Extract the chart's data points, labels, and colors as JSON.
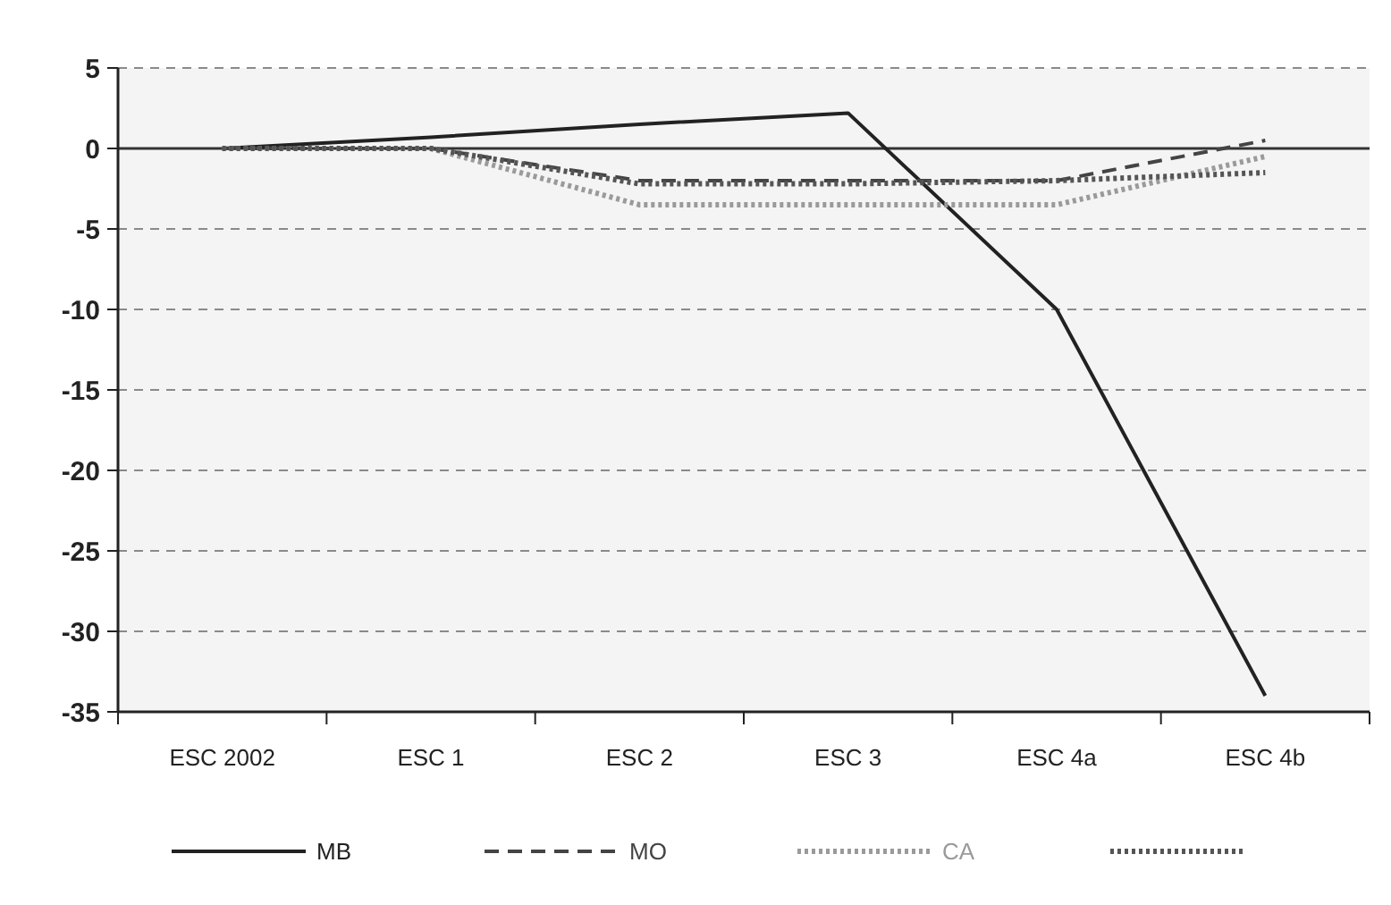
{
  "chart_data": {
    "type": "line",
    "categories": [
      "ESC 2002",
      "ESC 1",
      "ESC 2",
      "ESC 3",
      "ESC 4a",
      "ESC 4b"
    ],
    "series": [
      {
        "name": "MB",
        "color": "#222222",
        "line_style": "solid",
        "values": [
          0,
          0.7,
          1.5,
          2.2,
          -10,
          -34
        ]
      },
      {
        "name": "MO",
        "color": "#444444",
        "line_style": "dashed",
        "values": [
          0,
          0,
          -2,
          -2,
          -2,
          0.5
        ]
      },
      {
        "name": "CA",
        "color": "#9a9a9a",
        "line_style": "dotted",
        "values": [
          0,
          0,
          -3.5,
          -3.5,
          -3.5,
          -0.5
        ]
      },
      {
        "color": "#555555",
        "line_style": "dotted",
        "values": [
          0,
          0,
          -2.2,
          -2.2,
          -2,
          -1.5
        ]
      }
    ],
    "ylim": [
      -35,
      5
    ],
    "yticks": [
      -35,
      -30,
      -25,
      -20,
      -15,
      -10,
      -5,
      0,
      5
    ],
    "grid": "y",
    "marker": "none",
    "legend": "bottom",
    "ref_lines": [
      {
        "axis": "y",
        "value": 0,
        "color": "#333333",
        "line_style": "solid"
      }
    ]
  }
}
